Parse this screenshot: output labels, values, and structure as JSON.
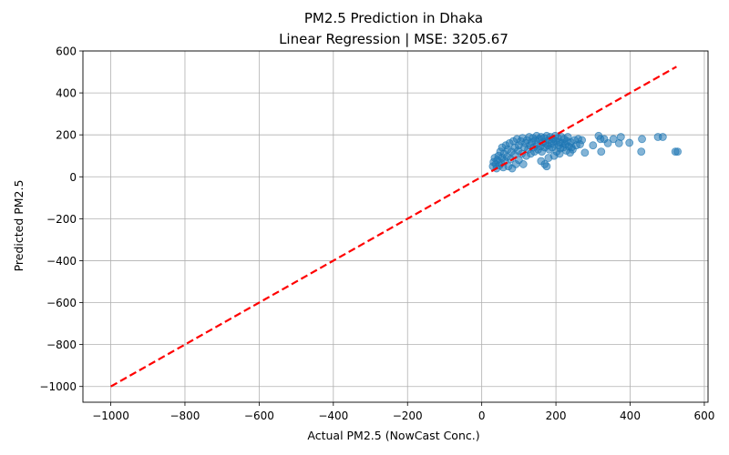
{
  "chart_data": {
    "type": "scatter",
    "title": "PM2.5 Prediction in Dhaka",
    "subtitle": "Linear Regression | MSE: 3205.67",
    "xlabel": "Actual PM2.5 (NowCast Conc.)",
    "ylabel": "Predicted PM2.5",
    "xlim": [
      -1075,
      610
    ],
    "ylim": [
      -1075,
      600
    ],
    "xticks": [
      -1000,
      -800,
      -600,
      -400,
      -200,
      0,
      200,
      400,
      600
    ],
    "yticks": [
      -1000,
      -800,
      -600,
      -400,
      -200,
      0,
      200,
      400,
      600
    ],
    "xtick_labels": [
      "−1000",
      "−800",
      "−600",
      "−400",
      "−200",
      "0",
      "200",
      "400",
      "600"
    ],
    "ytick_labels": [
      "−1000",
      "−800",
      "−600",
      "−400",
      "−200",
      "0",
      "200",
      "400",
      "600"
    ],
    "grid": true,
    "point_color": "#1f77b4",
    "reference_line": {
      "style": "dashed",
      "color": "#ff0000",
      "x": [
        -1000,
        525
      ],
      "y": [
        -1000,
        525
      ]
    },
    "points": [
      [
        30,
        50
      ],
      [
        32,
        70
      ],
      [
        35,
        90
      ],
      [
        38,
        60
      ],
      [
        40,
        40
      ],
      [
        42,
        80
      ],
      [
        45,
        100
      ],
      [
        48,
        55
      ],
      [
        50,
        120
      ],
      [
        52,
        65
      ],
      [
        55,
        90
      ],
      [
        55,
        140
      ],
      [
        58,
        45
      ],
      [
        60,
        110
      ],
      [
        62,
        75
      ],
      [
        65,
        150
      ],
      [
        68,
        95
      ],
      [
        70,
        130
      ],
      [
        72,
        50
      ],
      [
        75,
        160
      ],
      [
        78,
        85
      ],
      [
        80,
        120
      ],
      [
        82,
        40
      ],
      [
        85,
        170
      ],
      [
        88,
        105
      ],
      [
        90,
        140
      ],
      [
        92,
        60
      ],
      [
        95,
        180
      ],
      [
        98,
        125
      ],
      [
        100,
        150
      ],
      [
        100,
        80
      ],
      [
        105,
        170
      ],
      [
        108,
        110
      ],
      [
        110,
        185
      ],
      [
        112,
        60
      ],
      [
        115,
        140
      ],
      [
        118,
        160
      ],
      [
        120,
        100
      ],
      [
        122,
        175
      ],
      [
        125,
        130
      ],
      [
        128,
        190
      ],
      [
        130,
        150
      ],
      [
        132,
        110
      ],
      [
        135,
        165
      ],
      [
        138,
        185
      ],
      [
        140,
        140
      ],
      [
        142,
        120
      ],
      [
        145,
        175
      ],
      [
        148,
        195
      ],
      [
        150,
        155
      ],
      [
        152,
        130
      ],
      [
        155,
        180
      ],
      [
        158,
        145
      ],
      [
        160,
        190
      ],
      [
        162,
        120
      ],
      [
        165,
        165
      ],
      [
        168,
        185
      ],
      [
        170,
        140
      ],
      [
        172,
        160
      ],
      [
        175,
        195
      ],
      [
        178,
        150
      ],
      [
        180,
        175
      ],
      [
        182,
        130
      ],
      [
        185,
        190
      ],
      [
        188,
        160
      ],
      [
        190,
        140
      ],
      [
        192,
        180
      ],
      [
        195,
        155
      ],
      [
        198,
        195
      ],
      [
        200,
        170
      ],
      [
        202,
        120
      ],
      [
        205,
        185
      ],
      [
        208,
        150
      ],
      [
        210,
        165
      ],
      [
        212,
        135
      ],
      [
        215,
        190
      ],
      [
        218,
        160
      ],
      [
        220,
        140
      ],
      [
        222,
        180
      ],
      [
        225,
        155
      ],
      [
        228,
        125
      ],
      [
        230,
        170
      ],
      [
        232,
        190
      ],
      [
        235,
        145
      ],
      [
        238,
        115
      ],
      [
        240,
        165
      ],
      [
        242,
        140
      ],
      [
        245,
        130
      ],
      [
        160,
        75
      ],
      [
        170,
        60
      ],
      [
        175,
        50
      ],
      [
        180,
        90
      ],
      [
        195,
        100
      ],
      [
        210,
        110
      ],
      [
        250,
        175
      ],
      [
        255,
        150
      ],
      [
        260,
        180
      ],
      [
        265,
        155
      ],
      [
        270,
        175
      ],
      [
        278,
        115
      ],
      [
        300,
        150
      ],
      [
        315,
        195
      ],
      [
        320,
        180
      ],
      [
        322,
        120
      ],
      [
        330,
        180
      ],
      [
        340,
        160
      ],
      [
        355,
        180
      ],
      [
        370,
        160
      ],
      [
        375,
        190
      ],
      [
        398,
        162
      ],
      [
        430,
        120
      ],
      [
        432,
        180
      ],
      [
        475,
        190
      ],
      [
        488,
        190
      ],
      [
        522,
        120
      ],
      [
        528,
        120
      ]
    ]
  }
}
